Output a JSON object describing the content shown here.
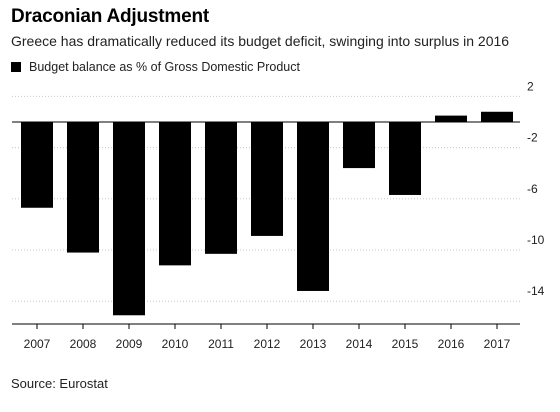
{
  "header": {
    "title": "Draconian Adjustment",
    "subtitle": "Greece has dramatically reduced its budget deficit, swinging into surplus in 2016"
  },
  "footer": {
    "source": "Source: Eurostat"
  },
  "chart_data": {
    "type": "bar",
    "title": "Draconian Adjustment",
    "subtitle": "Greece has dramatically reduced its budget deficit, swinging into surplus in 2016",
    "categories": [
      "2007",
      "2008",
      "2009",
      "2010",
      "2011",
      "2012",
      "2013",
      "2014",
      "2015",
      "2016",
      "2017"
    ],
    "series": [
      {
        "name": "Budget balance as % of Gross Domestic Product",
        "values": [
          -6.7,
          -10.2,
          -15.1,
          -11.2,
          -10.3,
          -8.9,
          -13.2,
          -3.6,
          -5.7,
          0.5,
          0.8
        ],
        "color": "#000000"
      }
    ],
    "yticks": [
      2,
      -2,
      -6,
      -10,
      -14
    ],
    "ylim": [
      -15.4,
      2.5
    ],
    "grid": true,
    "y_axis_side": "right",
    "legend_position": "top-left"
  }
}
